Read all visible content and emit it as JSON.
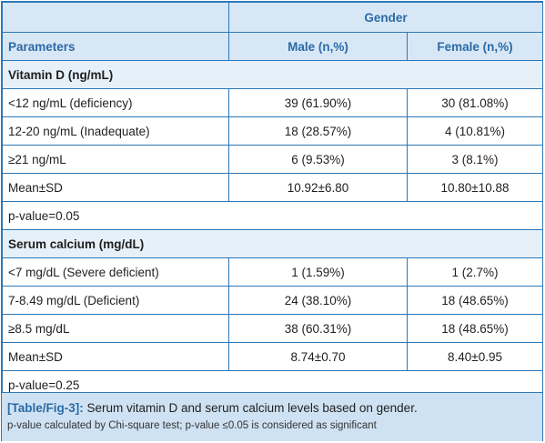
{
  "header": {
    "group_label": "Gender",
    "param_label": "Parameters",
    "male_label": "Male (n,%)",
    "female_label": "Female (n,%)"
  },
  "sections": [
    {
      "title": "Vitamin D (ng/mL)",
      "rows": [
        {
          "param": "<12 ng/mL (deficiency)",
          "male": "39 (61.90%)",
          "female": "30 (81.08%)"
        },
        {
          "param": "12-20 ng/mL (Inadequate)",
          "male": "18 (28.57%)",
          "female": "4 (10.81%)"
        },
        {
          "param": "≥21 ng/mL",
          "male": "6 (9.53%)",
          "female": "3 (8.1%)"
        },
        {
          "param": "Mean±SD",
          "male": "10.92±6.80",
          "female": "10.80±10.88"
        }
      ],
      "pvalue": "p-value=0.05"
    },
    {
      "title": "Serum calcium (mg/dL)",
      "rows": [
        {
          "param": "<7 mg/dL (Severe deficient)",
          "male": "1 (1.59%)",
          "female": "1 (2.7%)"
        },
        {
          "param": "7-8.49 mg/dL (Deficient)",
          "male": "24 (38.10%)",
          "female": "18 (48.65%)"
        },
        {
          "param": "≥8.5 mg/dL",
          "male": "38 (60.31%)",
          "female": "18 (48.65%)"
        },
        {
          "param": "Mean±SD",
          "male": "8.74±0.70",
          "female": "8.40±0.95"
        }
      ],
      "pvalue": "p-value=0.25"
    }
  ],
  "caption": {
    "label": "[Table/Fig-3]:",
    "text": "Serum vitamin D and serum calcium levels based on gender.",
    "note": "p-value calculated by Chi-square test; p-value ≤0.05 is considered as significant"
  }
}
